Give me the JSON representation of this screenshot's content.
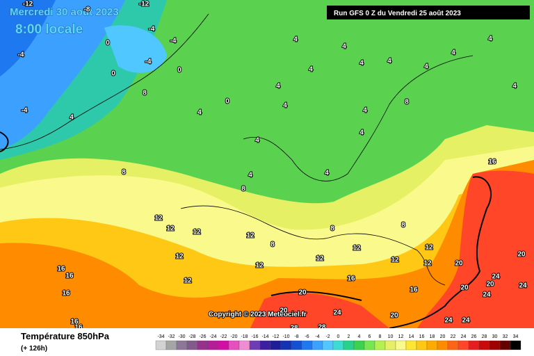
{
  "header": {
    "date": "Mercredi 30 août 2023",
    "time": "8:00 locale",
    "run": "Run GFS 0 Z du Vendredi 25 août 2023"
  },
  "copyright": "Copyright © 2023 Meteociel.fr",
  "footer": {
    "title": "Température 850hPa",
    "subtitle": "(+ 126h)"
  },
  "scale": {
    "ticks": [
      -34,
      -32,
      -30,
      -28,
      -26,
      -24,
      -22,
      -20,
      -18,
      -16,
      -14,
      -12,
      -10,
      -8,
      -6,
      -4,
      -2,
      0,
      2,
      4,
      6,
      8,
      10,
      12,
      14,
      16,
      18,
      20,
      22,
      24,
      26,
      28,
      30,
      32,
      34
    ],
    "colors": [
      "#d2d2d2",
      "#a5a5a5",
      "#8c7896",
      "#825a8c",
      "#96328c",
      "#b41e96",
      "#d20fa5",
      "#e650be",
      "#f08cd2",
      "#6e3cb4",
      "#3c1ea0",
      "#1e1e96",
      "#1432b4",
      "#1450d2",
      "#1e78f0",
      "#3ca0ff",
      "#50c8ff",
      "#3cdcd2",
      "#28d28c",
      "#3cd250",
      "#78e650",
      "#b4f050",
      "#e6f064",
      "#fafa8c",
      "#ffe632",
      "#ffc814",
      "#ffaa00",
      "#ff8c00",
      "#ff6414",
      "#ff4628",
      "#e61e1e",
      "#c80a0a",
      "#a00000",
      "#640000",
      "#000000"
    ]
  },
  "contour_labels": [
    -12,
    -12,
    -8,
    -4,
    -4,
    -4,
    -4,
    -4,
    0,
    0,
    0,
    0,
    4,
    4,
    4,
    4,
    4,
    4,
    4,
    4,
    4,
    4,
    4,
    4,
    4,
    4,
    4,
    4,
    4,
    4,
    8,
    8,
    8,
    8,
    8,
    8,
    8,
    12,
    12,
    12,
    12,
    12,
    12,
    12,
    12,
    12,
    12,
    12,
    12,
    16,
    16,
    16,
    16,
    16,
    16,
    16,
    16,
    20,
    20,
    20,
    20,
    20,
    20,
    20,
    24,
    24,
    24,
    24,
    24,
    24,
    28,
    28
  ]
}
